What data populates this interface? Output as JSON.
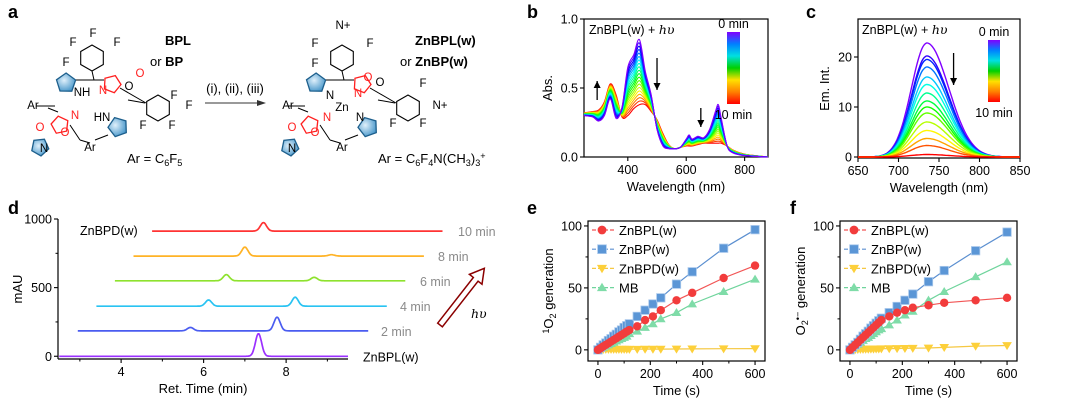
{
  "panel_labels": {
    "a": "a",
    "b": "b",
    "c": "c",
    "d": "d",
    "e": "e",
    "f": "f"
  },
  "panel_a": {
    "reactant_name": "BPL",
    "reactant_alt_prefix": "or ",
    "reactant_alt": "BP",
    "product_name": "ZnBPL(w)",
    "product_alt_prefix": "or ",
    "product_alt": "ZnBP(w)",
    "conditions": "(i), (ii), (iii)",
    "reactant_ar": [
      [
        "Ar = C",
        ""
      ],
      [
        "6",
        "sub"
      ],
      [
        "F",
        ""
      ],
      [
        "5",
        "sub"
      ]
    ],
    "product_ar": [
      [
        "Ar = C",
        ""
      ],
      [
        "6",
        "sub"
      ],
      [
        "F",
        ""
      ],
      [
        "4",
        "sub"
      ],
      [
        "N(CH",
        ""
      ],
      [
        "3",
        "sub"
      ],
      [
        ")",
        ""
      ],
      [
        "3",
        "sub"
      ],
      [
        "+",
        "sup"
      ]
    ],
    "reactant_atoms": [
      "F",
      "F",
      "F",
      "F",
      "O",
      "O",
      "N",
      "NH",
      "Ar",
      "F",
      "F",
      "F",
      "F",
      "HN",
      "N",
      "O",
      "O",
      "Ar",
      "N"
    ],
    "product_atoms": [
      "N+",
      "F",
      "F",
      "F",
      "O",
      "O",
      "N",
      "N",
      "Zn",
      "Ar",
      "N",
      "N",
      "O",
      "O",
      "Ar",
      "N",
      "F",
      "N+",
      "F",
      "F"
    ],
    "colors": {
      "pyrrole": "#3b8fc6",
      "oxazolone": "#ff2020"
    }
  },
  "chart_data": [
    {
      "panel": "b",
      "type": "line",
      "annotation": {
        "text": "ZnBPL(w) + ",
        "italic": "hυ"
      },
      "xlabel": "Wavelength (nm)",
      "ylabel": "Abs.",
      "xlim": [
        250,
        880
      ],
      "ylim": [
        0,
        1.0
      ],
      "xticks": [
        400,
        600,
        800
      ],
      "xtick_labels": [
        "400",
        "600",
        "800"
      ],
      "yticks": [
        0,
        0.5,
        1.0
      ],
      "ytick_labels": [
        "0.0",
        "0.5",
        "1.0"
      ],
      "colorbar": {
        "top": "0 min",
        "bottom": "10 min",
        "colors": [
          "#8000ff",
          "#0080ff",
          "#00e0e0",
          "#00d000",
          "#ffe000",
          "#ff8000",
          "#ff0000"
        ]
      },
      "x": [
        250,
        280,
        300,
        320,
        340,
        360,
        380,
        400,
        420,
        440,
        460,
        480,
        500,
        520,
        540,
        560,
        580,
        600,
        610,
        620,
        640,
        660,
        680,
        700,
        710,
        720,
        740,
        760,
        800,
        880
      ],
      "spectrum_0min": [
        0.3,
        0.29,
        0.26,
        0.3,
        0.42,
        0.28,
        0.36,
        0.65,
        0.74,
        0.85,
        0.62,
        0.45,
        0.2,
        0.08,
        0.06,
        0.06,
        0.07,
        0.13,
        0.16,
        0.13,
        0.15,
        0.14,
        0.2,
        0.33,
        0.38,
        0.28,
        0.08,
        0.03,
        0.01,
        0.0
      ],
      "spectrum_10min": [
        0.32,
        0.33,
        0.34,
        0.4,
        0.53,
        0.45,
        0.29,
        0.3,
        0.35,
        0.38,
        0.38,
        0.33,
        0.27,
        0.17,
        0.09,
        0.06,
        0.07,
        0.08,
        0.08,
        0.08,
        0.09,
        0.1,
        0.1,
        0.1,
        0.1,
        0.1,
        0.08,
        0.05,
        0.02,
        0.0
      ],
      "n_spectra": 20,
      "arrows": [
        {
          "x": 295,
          "direction": "up"
        },
        {
          "x": 500,
          "direction": "down"
        },
        {
          "x": 650,
          "direction": "down"
        }
      ]
    },
    {
      "panel": "c",
      "type": "line",
      "annotation": {
        "text": "ZnBPL(w) + ",
        "italic": "hυ"
      },
      "xlabel": "Wavelength (nm)",
      "ylabel": "Em. Int.",
      "xlim": [
        650,
        850
      ],
      "ylim": [
        -0.2,
        27.6
      ],
      "xticks": [
        650,
        700,
        750,
        800,
        850
      ],
      "xtick_labels": [
        "650",
        "700",
        "750",
        "800",
        "850"
      ],
      "yticks": [
        0,
        10,
        20
      ],
      "ytick_labels": [
        "0",
        "10",
        "20"
      ],
      "colorbar": {
        "top": "0 min",
        "bottom": "10 min",
        "colors": [
          "#8000ff",
          "#0080ff",
          "#00e0e0",
          "#00d000",
          "#ffe000",
          "#ff8000",
          "#ff0000"
        ]
      },
      "peak_wavelength": 735,
      "peak_intensities": [
        22.8,
        20.2,
        19.5,
        18.0,
        16.0,
        14.5,
        12.8,
        11.2,
        10.0,
        8.8,
        7.0,
        5.3,
        3.7,
        2.3,
        0.5
      ],
      "arrows": [
        {
          "x": 768,
          "direction": "down"
        }
      ]
    },
    {
      "panel": "d",
      "type": "line",
      "xlabel": "Ret. Time (min)",
      "ylabel": "mAU",
      "xlim": [
        2.47,
        9.5
      ],
      "ylim": [
        -20,
        1000
      ],
      "xticks": [
        4,
        6,
        8
      ],
      "xtick_labels": [
        "4",
        "6",
        "8"
      ],
      "yticks": [
        0,
        500,
        1000
      ],
      "ytick_labels": [
        "0",
        "500",
        "1000"
      ],
      "arrow_label": "hυ",
      "traces": [
        {
          "label": "ZnBPL(w)",
          "color": "#9b30ff",
          "baseline": 0,
          "x_range": [
            2.5,
            9.5
          ],
          "peaks": [
            {
              "x": 7.33,
              "height": 165
            }
          ]
        },
        {
          "label": "2 min",
          "color": "#4a5cf0",
          "baseline": 185,
          "x_range": [
            2.95,
            10.0
          ],
          "peaks": [
            {
              "x": 5.68,
              "height": 25
            },
            {
              "x": 7.78,
              "height": 100
            }
          ]
        },
        {
          "label": "4 min",
          "color": "#29c3f2",
          "baseline": 365,
          "x_range": [
            3.4,
            10.45
          ],
          "peaks": [
            {
              "x": 6.12,
              "height": 45
            },
            {
              "x": 8.22,
              "height": 65
            }
          ]
        },
        {
          "label": "6 min",
          "color": "#8ee22e",
          "baseline": 550,
          "x_range": [
            3.85,
            10.9
          ],
          "peaks": [
            {
              "x": 6.55,
              "height": 45
            },
            {
              "x": 8.68,
              "height": 25
            }
          ]
        },
        {
          "label": "8 min",
          "color": "#ffb326",
          "baseline": 730,
          "x_range": [
            4.3,
            11.35
          ],
          "peaks": [
            {
              "x": 7.0,
              "height": 65
            },
            {
              "x": 9.1,
              "height": 10
            }
          ]
        },
        {
          "label": "10 min",
          "color": "#ff3333",
          "baseline": 912,
          "x_range": [
            4.75,
            11.8
          ],
          "peaks": [
            {
              "x": 7.45,
              "height": 62
            }
          ]
        }
      ],
      "extra_label": "ZnBPD(w)"
    },
    {
      "panel": "e",
      "type": "line",
      "xlabel": "Time (s)",
      "ylabel": [
        [
          "1",
          "sup"
        ],
        [
          "O",
          ""
        ],
        [
          "2",
          "sub"
        ],
        [
          " generation",
          ""
        ]
      ],
      "xlim": [
        -38,
        638
      ],
      "ylim": [
        -9,
        104
      ],
      "xticks": [
        0,
        200,
        400,
        600
      ],
      "xtick_labels": [
        "0",
        "200",
        "400",
        "600"
      ],
      "yticks": [
        0,
        50,
        100
      ],
      "ytick_labels": [
        "0",
        "50",
        "100"
      ],
      "legend": "top-left",
      "x": [
        0,
        10,
        20,
        30,
        40,
        50,
        60,
        70,
        80,
        90,
        100,
        110,
        120,
        150,
        180,
        210,
        240,
        300,
        360,
        480,
        600
      ],
      "series": [
        {
          "name": "ZnBPL(w)",
          "marker": "circle",
          "color": "#f23c3c",
          "line": "#f25555",
          "values": [
            0,
            1.3,
            2.7,
            4,
            5.3,
            6.7,
            8,
            9.3,
            10.7,
            12,
            13.3,
            14.7,
            16,
            19,
            24,
            27,
            32,
            40,
            46,
            58,
            68
          ]
        },
        {
          "name": "ZnBP(w)",
          "marker": "square",
          "color": "#5b96d6",
          "line": "#5b8fd0",
          "values": [
            0,
            2,
            4,
            5.5,
            7.5,
            9,
            11,
            12.5,
            14.5,
            16,
            18,
            19.5,
            21,
            27,
            32,
            37,
            42,
            53,
            63,
            82,
            97
          ]
        },
        {
          "name": "ZnBPD(w)",
          "marker": "triangle-down",
          "color": "#fdd03a",
          "line": "#f5c842",
          "values": [
            0,
            0.4,
            0.4,
            0.5,
            0.5,
            0.5,
            0.5,
            0.5,
            0.5,
            0.5,
            0.5,
            0.5,
            0.5,
            0.5,
            0.6,
            0.6,
            0.6,
            0.7,
            0.8,
            0.9,
            1.0
          ]
        },
        {
          "name": "MB",
          "marker": "triangle-up",
          "color": "#7fdca8",
          "line": "#6fd49c",
          "values": [
            0,
            1,
            2,
            3,
            4,
            5,
            6,
            7,
            8,
            9,
            10,
            11,
            13,
            15,
            18,
            21,
            25,
            30,
            37,
            47,
            57
          ]
        }
      ]
    },
    {
      "panel": "f",
      "type": "line",
      "xlabel": "Time (s)",
      "ylabel": [
        [
          "O",
          ""
        ],
        [
          "2",
          "sub"
        ],
        [
          "•−",
          "sup"
        ],
        [
          " generation",
          ""
        ]
      ],
      "xlim": [
        -38,
        638
      ],
      "ylim": [
        -9,
        104
      ],
      "xticks": [
        0,
        200,
        400,
        600
      ],
      "xtick_labels": [
        "0",
        "200",
        "400",
        "600"
      ],
      "yticks": [
        0,
        50,
        100
      ],
      "ytick_labels": [
        "0",
        "50",
        "100"
      ],
      "legend": "top-left",
      "x": [
        0,
        10,
        20,
        30,
        40,
        50,
        60,
        70,
        80,
        90,
        100,
        110,
        120,
        150,
        180,
        210,
        240,
        300,
        360,
        480,
        600
      ],
      "series": [
        {
          "name": "ZnBPL(w)",
          "marker": "circle",
          "color": "#f23c3c",
          "line": "#f25555",
          "values": [
            0,
            2,
            4,
            6,
            8,
            10,
            12,
            14,
            16,
            18,
            20,
            22,
            24,
            27,
            30,
            32,
            34,
            36,
            38,
            40,
            42
          ]
        },
        {
          "name": "ZnBP(w)",
          "marker": "square",
          "color": "#5b96d6",
          "line": "#5b8fd0",
          "values": [
            0,
            2,
            4,
            6,
            8.5,
            11,
            13,
            15,
            17.5,
            19.5,
            21.5,
            23.5,
            25.5,
            30,
            35,
            40,
            45,
            55,
            64,
            80,
            95
          ]
        },
        {
          "name": "ZnBPD(w)",
          "marker": "triangle-down",
          "color": "#fdd03a",
          "line": "#f5c842",
          "values": [
            0,
            0.2,
            0.3,
            0.4,
            0.5,
            0.5,
            0.6,
            0.6,
            0.7,
            0.7,
            0.8,
            0.8,
            0.9,
            1.0,
            1.1,
            1.2,
            1.3,
            1.5,
            2.0,
            3.0,
            3.5
          ]
        },
        {
          "name": "MB",
          "marker": "triangle-up",
          "color": "#7fdca8",
          "line": "#6fd49c",
          "values": [
            0,
            1.5,
            3,
            4.5,
            6,
            7.5,
            9,
            10,
            11.5,
            13,
            14.5,
            16,
            17,
            20,
            24,
            28,
            31,
            40,
            47,
            59,
            71
          ]
        }
      ]
    }
  ]
}
